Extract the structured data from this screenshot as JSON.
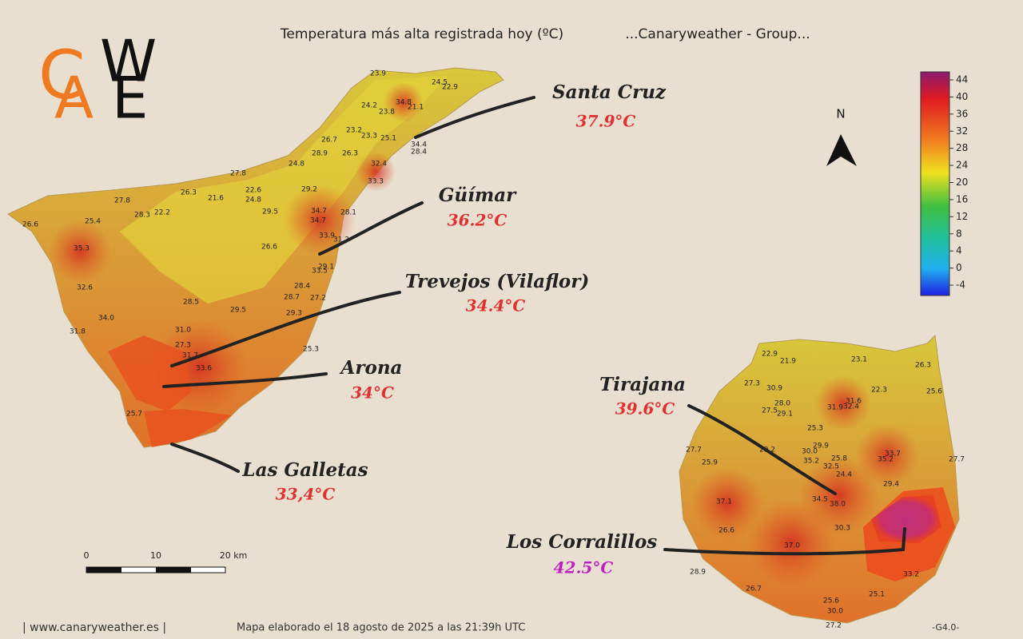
{
  "header": {
    "title": "Temperatura más alta registrada hoy (ºC)",
    "subtitle": "...Canaryweather - Group..."
  },
  "logo": {
    "letters": [
      "C",
      "A",
      "W",
      "E"
    ]
  },
  "north": "N",
  "legend": {
    "ticks": [
      44,
      40,
      36,
      32,
      28,
      24,
      20,
      16,
      12,
      8,
      4,
      0,
      -4
    ]
  },
  "scale_bar": {
    "labels": [
      "0",
      "10",
      "20 km"
    ]
  },
  "callouts": [
    {
      "name": "Santa Cruz",
      "temp": "37.9°C"
    },
    {
      "name": "Güímar",
      "temp": "36.2°C"
    },
    {
      "name": "Trevejos (Vilaflor)",
      "temp": "34.4°C"
    },
    {
      "name": "Arona",
      "temp": "34°C"
    },
    {
      "name": "Las Galletas",
      "temp": "33,4°C"
    },
    {
      "name": "Tirajana",
      "temp": "39.6°C"
    },
    {
      "name": "Los Corralillos",
      "temp": "42.5°C"
    }
  ],
  "stations": {
    "tenerife": [
      "23.9",
      "24.5",
      "22.9",
      "34.8",
      "24.2",
      "21.1",
      "23.8",
      "23.2",
      "23.3",
      "25.1",
      "26.7",
      "34.4",
      "28.4",
      "28.9",
      "26.3",
      "24.8",
      "32.4",
      "27.8",
      "33.3",
      "26.3",
      "21.6",
      "22.6",
      "24.8",
      "29.2",
      "27.8",
      "28.3",
      "22.2",
      "29.5",
      "34.7",
      "34.7",
      "28.1",
      "26.6",
      "25.4",
      "33.9",
      "31.2",
      "35.3",
      "26.6",
      "29.1",
      "33.5",
      "32.6",
      "28.4",
      "28.7",
      "27.2",
      "28.5",
      "29.5",
      "29.3",
      "34.0",
      "31.0",
      "31.8",
      "27.3",
      "25.3",
      "31.7",
      "33.6",
      "25.7"
    ],
    "gran_canaria": [
      "22.9",
      "21.9",
      "23.1",
      "26.3",
      "27.3",
      "30.9",
      "22.3",
      "25.6",
      "28.0",
      "31.6",
      "27.5",
      "29.1",
      "31.9",
      "32.4",
      "25.3",
      "29.9",
      "27.7",
      "29.2",
      "30.0",
      "25.8",
      "33.7",
      "27.7",
      "25.9",
      "35.2",
      "32.5",
      "35.2",
      "24.4",
      "29.4",
      "34.5",
      "38.0",
      "37.1",
      "30.3",
      "26.6",
      "37.0",
      "28.9",
      "33.2",
      "26.7",
      "25.1",
      "25.6",
      "30.0",
      "27.2"
    ]
  },
  "footer": {
    "site": "| www.canaryweather.es |",
    "note": "Mapa elaborado el 18 agosto de 2025 a las 21:39h UTC",
    "version": "-G4.0-"
  }
}
